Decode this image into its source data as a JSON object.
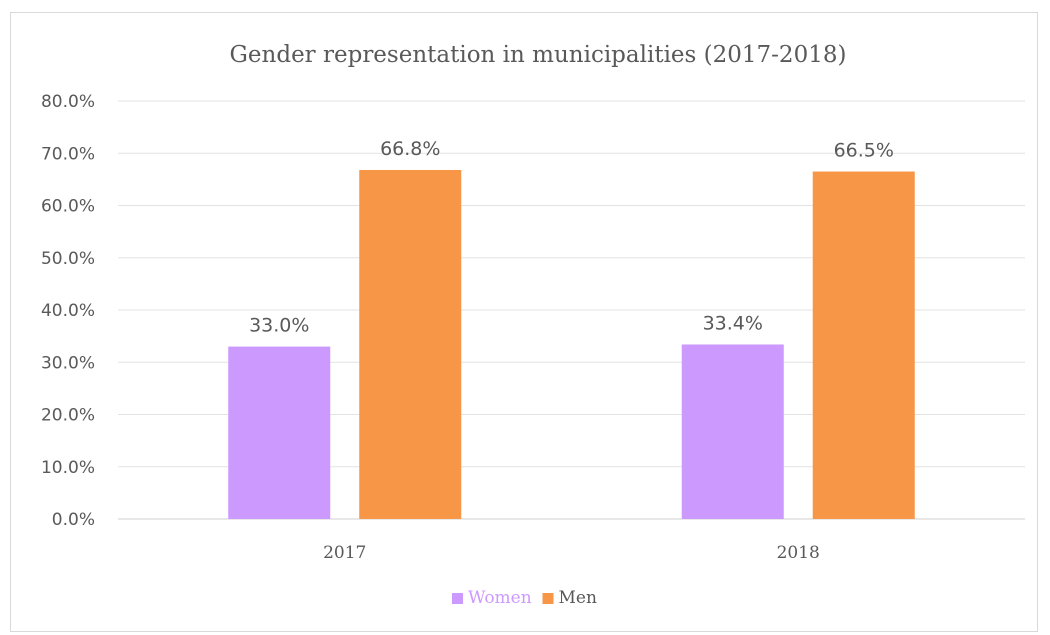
{
  "chart_data": {
    "type": "bar",
    "title": "Gender representation in municipalities (2017-2018)",
    "categories": [
      "2017",
      "2018"
    ],
    "series": [
      {
        "name": "Women",
        "values": [
          33.0,
          33.4
        ],
        "color": "#cc99ff",
        "labels": [
          "33.0%",
          "33.4%"
        ]
      },
      {
        "name": "Men",
        "values": [
          66.8,
          66.5
        ],
        "color": "#f79646",
        "labels": [
          "66.8%",
          "66.5%"
        ]
      }
    ],
    "ylim": [
      0,
      80
    ],
    "yticks": [
      0,
      10,
      20,
      30,
      40,
      50,
      60,
      70,
      80
    ],
    "ytick_labels": [
      "0.0%",
      "10.0%",
      "20.0%",
      "30.0%",
      "40.0%",
      "50.0%",
      "60.0%",
      "70.0%",
      "80.0%"
    ],
    "grid": true,
    "legend": "bottom"
  }
}
